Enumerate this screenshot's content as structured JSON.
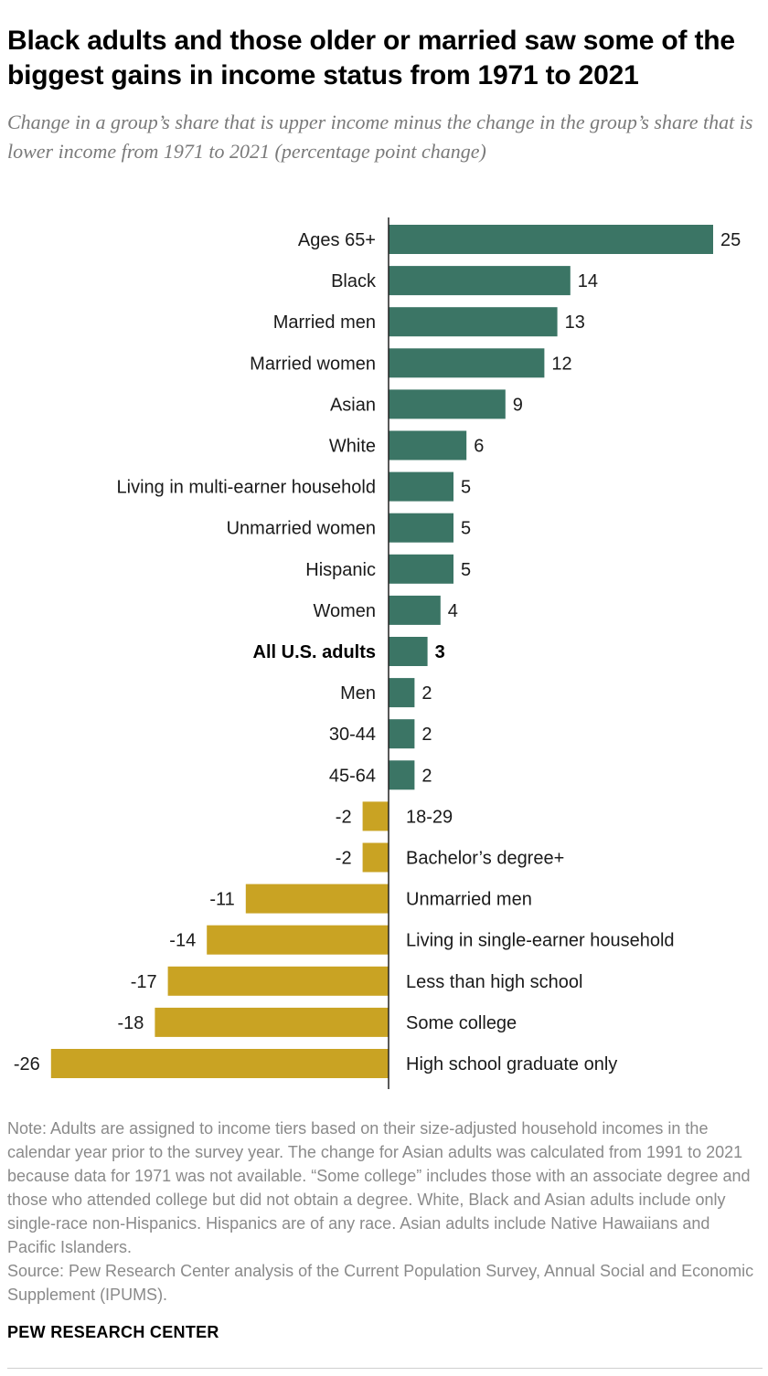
{
  "header": {
    "title": "Black adults and those older or married saw some of the biggest gains in income status from 1971 to 2021",
    "subtitle": "Change in a group’s share that is upper income minus the change in the group’s share that is lower income from 1971 to 2021 (percentage point change)"
  },
  "footer": {
    "note": "Note: Adults are assigned to income tiers based on their size-adjusted household incomes in the calendar year prior to the survey year. The change for Asian adults was calculated from 1991 to 2021 because data for 1971 was not available. “Some college” includes those with an associate degree and those who attended college but did not obtain a degree. White, Black and Asian adults include only single-race non-Hispanics. Hispanics are of any race. Asian adults include Native Hawaiians and Pacific Islanders.",
    "source": "Source: Pew Research Center analysis of the Current Population Survey, Annual Social and Economic Supplement (IPUMS).",
    "brand": "PEW RESEARCH CENTER"
  },
  "chart_data": {
    "type": "bar",
    "orientation": "horizontal",
    "categories": [
      "Ages 65+",
      "Black",
      "Married men",
      "Married women",
      "Asian",
      "White",
      "Living in multi-earner household",
      "Unmarried women",
      "Hispanic",
      "Women",
      "All U.S. adults",
      "Men",
      "30-44",
      "45-64",
      "18-29",
      "Bachelor’s degree+",
      "Unmarried men",
      "Living in single-earner household",
      "Less than high school",
      "Some college",
      "High school graduate only"
    ],
    "values": [
      25,
      14,
      13,
      12,
      9,
      6,
      5,
      5,
      5,
      4,
      3,
      2,
      2,
      2,
      -2,
      -2,
      -11,
      -14,
      -17,
      -18,
      -26
    ],
    "highlight_category": "All U.S. adults",
    "xlim": [
      -26,
      25
    ],
    "grid": false,
    "data_labels": true,
    "colors": {
      "positive": "#3b7565",
      "negative": "#c9a323",
      "axis": "#222222"
    }
  }
}
